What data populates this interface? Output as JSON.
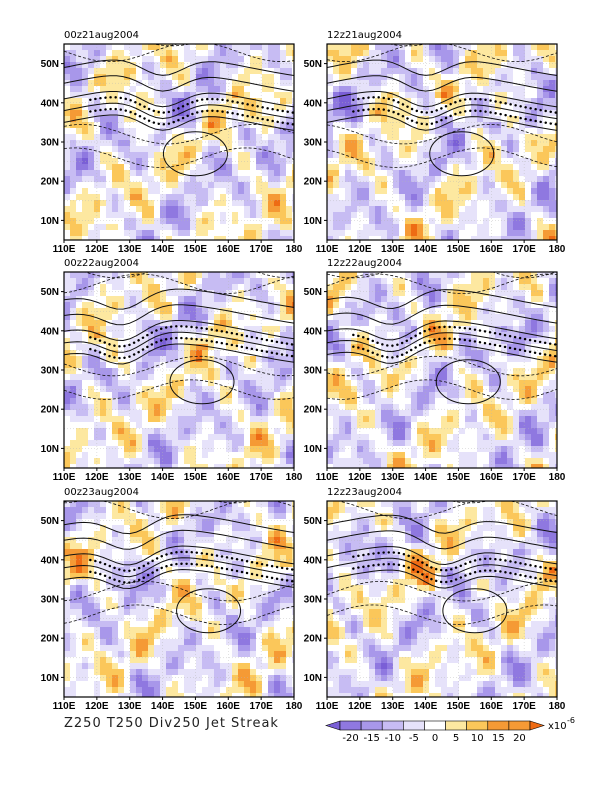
{
  "chart_data": {
    "type": "heatmap",
    "caption": "Z250 T250 Div250 Jet Streak",
    "fields": [
      "Z250",
      "T250",
      "Div250",
      "Jet Streak"
    ],
    "panels": [
      {
        "title": "00z21aug2004"
      },
      {
        "title": "12z21aug2004"
      },
      {
        "title": "00z22aug2004"
      },
      {
        "title": "12z22aug2004"
      },
      {
        "title": "00z23aug2004"
      },
      {
        "title": "12z23aug2004"
      }
    ],
    "x_ticks": [
      "110E",
      "120E",
      "130E",
      "140E",
      "150E",
      "160E",
      "170E",
      "180"
    ],
    "y_ticks": [
      "10N",
      "20N",
      "30N",
      "40N",
      "50N"
    ],
    "xlim": [
      110,
      180
    ],
    "ylim": [
      5,
      55
    ],
    "x_tick_values": [
      110,
      120,
      130,
      140,
      150,
      160,
      170,
      180
    ],
    "y_tick_values": [
      10,
      20,
      30,
      40,
      50
    ],
    "colorbar": {
      "labels": [
        "-20",
        "-15",
        "-10",
        "-5",
        "0",
        "5",
        "10",
        "15",
        "20"
      ],
      "levels": [
        -20,
        -15,
        -10,
        -5,
        0,
        5,
        10,
        15,
        20
      ],
      "scale_label": "x10",
      "scale_exponent": "-6",
      "colors": [
        "#7a5fd6",
        "#8f78e0",
        "#a897ea",
        "#c7bcf3",
        "#e6e2fa",
        "#ffffff",
        "#fde8a0",
        "#fbc75a",
        "#f59a35",
        "#ee6b14"
      ]
    },
    "jet_axis_latitude": [
      38,
      38,
      37,
      37,
      38,
      38
    ],
    "jet_dip_longitude": [
      140,
      140,
      128,
      130,
      130,
      145
    ]
  }
}
